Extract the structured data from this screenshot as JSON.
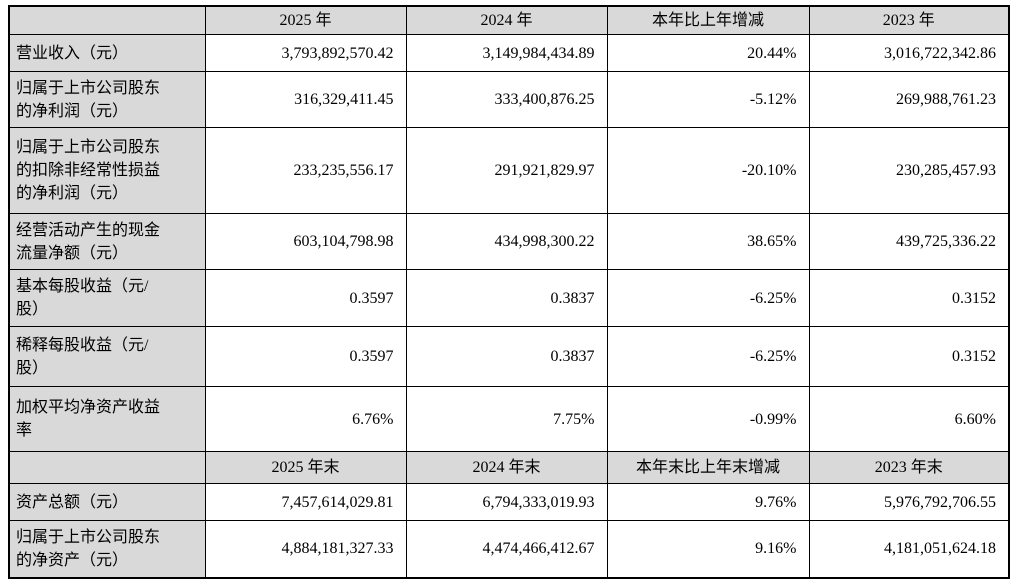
{
  "table": {
    "header_annual": {
      "blank": "",
      "y2025": "2025 年",
      "y2024": "2024 年",
      "change": "本年比上年增减",
      "y2023": "2023 年"
    },
    "rows_annual": [
      {
        "label": "营业收入（元）",
        "y2025": "3,793,892,570.42",
        "y2024": "3,149,984,434.89",
        "change": "20.44%",
        "y2023": "3,016,722,342.86"
      },
      {
        "label": "归属于上市公司股东的净利润（元）",
        "y2025": "316,329,411.45",
        "y2024": "333,400,876.25",
        "change": "-5.12%",
        "y2023": "269,988,761.23"
      },
      {
        "label": "归属于上市公司股东的扣除非经常性损益的净利润（元）",
        "y2025": "233,235,556.17",
        "y2024": "291,921,829.97",
        "change": "-20.10%",
        "y2023": "230,285,457.93"
      },
      {
        "label": "经营活动产生的现金流量净额（元）",
        "y2025": "603,104,798.98",
        "y2024": "434,998,300.22",
        "change": "38.65%",
        "y2023": "439,725,336.22"
      },
      {
        "label": "基本每股收益（元/股）",
        "y2025": "0.3597",
        "y2024": "0.3837",
        "change": "-6.25%",
        "y2023": "0.3152"
      },
      {
        "label": "稀释每股收益（元/股）",
        "y2025": "0.3597",
        "y2024": "0.3837",
        "change": "-6.25%",
        "y2023": "0.3152"
      },
      {
        "label": "加权平均净资产收益率",
        "y2025": "6.76%",
        "y2024": "7.75%",
        "change": "-0.99%",
        "y2023": "6.60%"
      }
    ],
    "header_yearend": {
      "blank": "",
      "y2025": "2025 年末",
      "y2024": "2024 年末",
      "change": "本年末比上年末增减",
      "y2023": "2023 年末"
    },
    "rows_yearend": [
      {
        "label": "资产总额（元）",
        "y2025": "7,457,614,029.81",
        "y2024": "6,794,333,019.93",
        "change": "9.76%",
        "y2023": "5,976,792,706.55"
      },
      {
        "label": "归属于上市公司股东的净资产（元）",
        "y2025": "4,884,181,327.33",
        "y2024": "4,474,466,412.67",
        "change": "9.16%",
        "y2023": "4,181,051,624.18"
      }
    ]
  },
  "colors": {
    "header_bg": "#d9d9d9",
    "border": "#000000",
    "text": "#000000",
    "page_bg": "#ffffff"
  }
}
